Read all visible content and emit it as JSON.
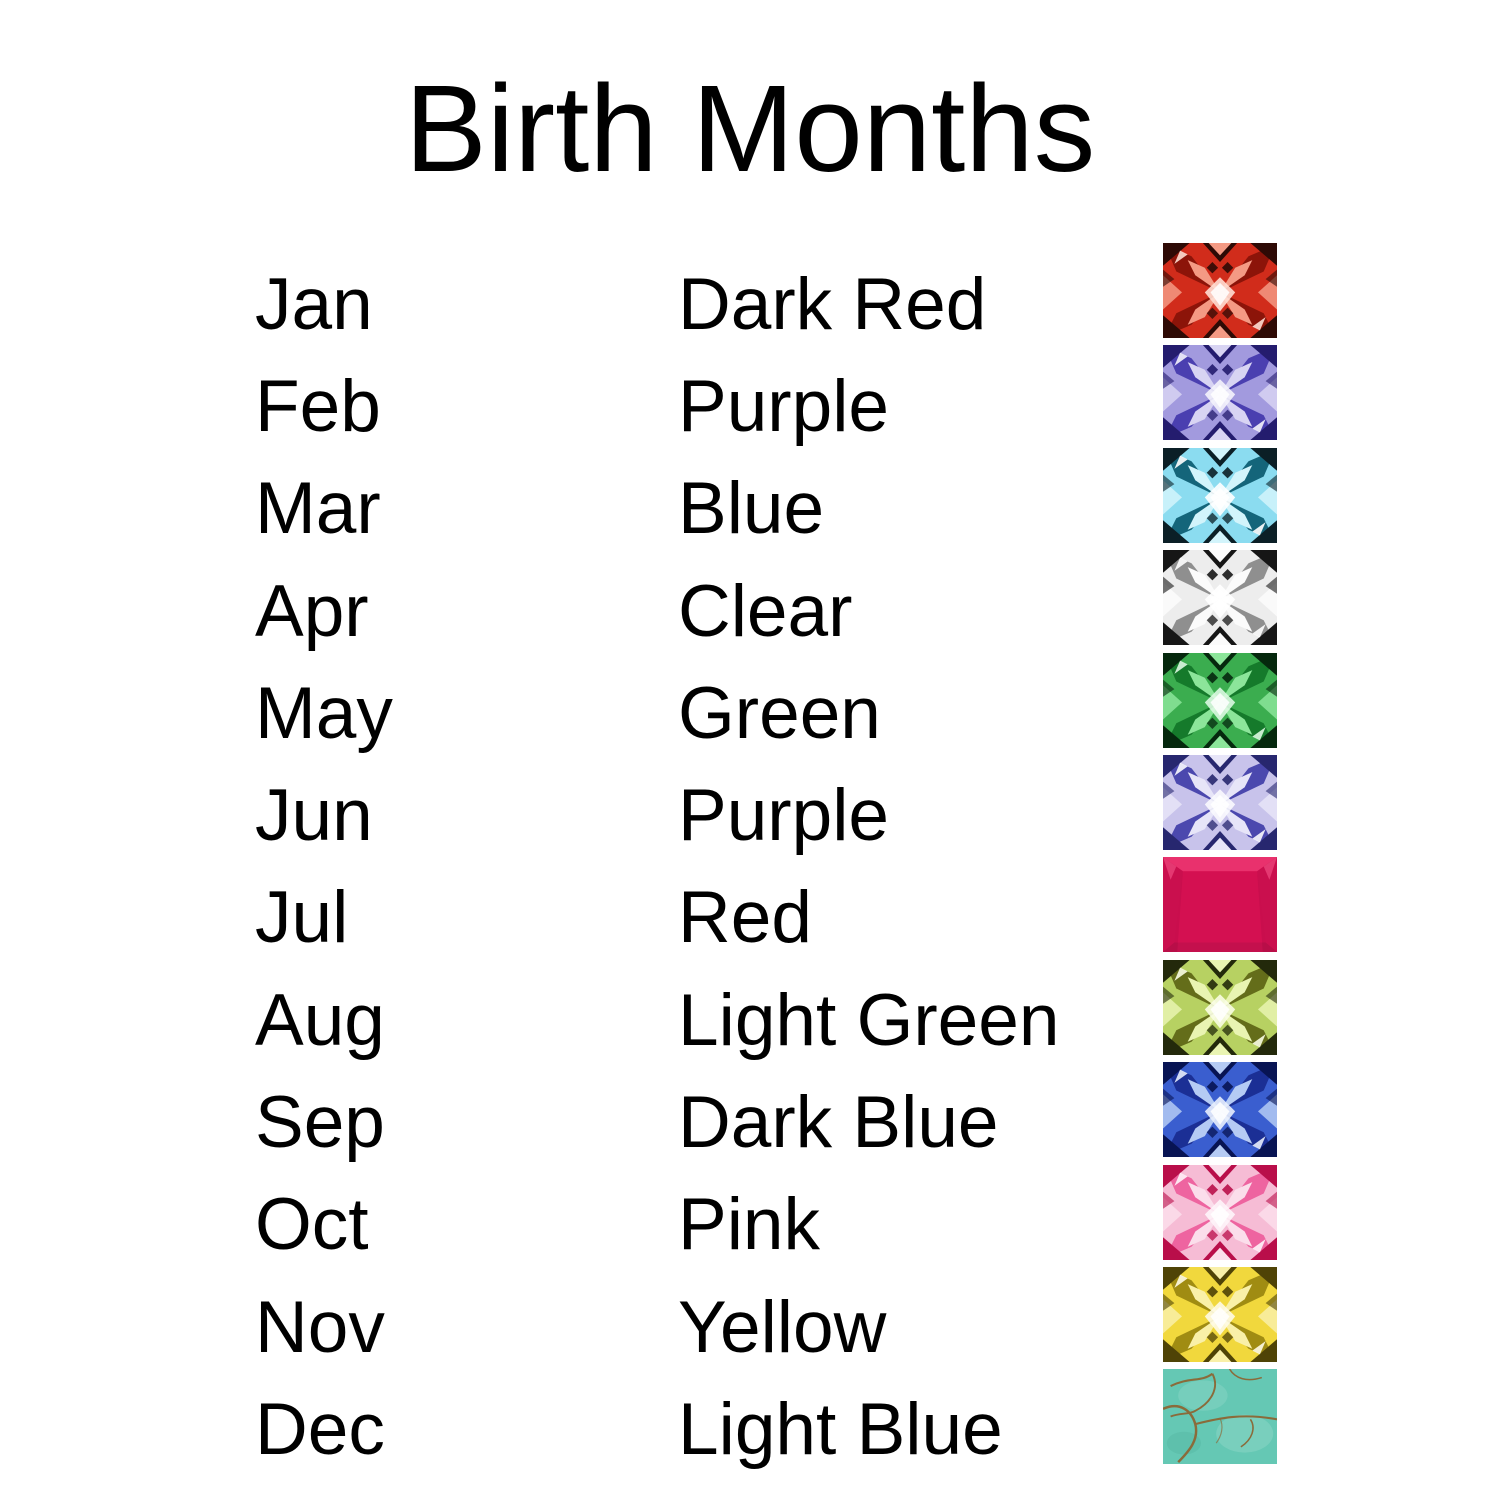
{
  "title": "Birth Months",
  "rows": [
    {
      "month": "Jan",
      "color_name": "Dark Red",
      "icon": "dark-red-gem-icon",
      "style": "faceted",
      "colors": {
        "b": "#d12c1b",
        "d": "#2e0a05",
        "m": "#8c1409",
        "l": "#f49a84",
        "x": "#ffded3"
      }
    },
    {
      "month": "Feb",
      "color_name": "Purple",
      "icon": "purple-gem-icon",
      "style": "faceted",
      "colors": {
        "b": "#a29ade",
        "d": "#241c6e",
        "m": "#4a3fb0",
        "l": "#d8d4f3",
        "x": "#f4f3fc"
      }
    },
    {
      "month": "Mar",
      "color_name": "Blue",
      "icon": "blue-gem-icon",
      "style": "faceted",
      "colors": {
        "b": "#8bdcf0",
        "d": "#0b1f26",
        "m": "#14657a",
        "l": "#d2f4fb",
        "x": "#ffffff"
      }
    },
    {
      "month": "Apr",
      "color_name": "Clear",
      "icon": "clear-gem-icon",
      "style": "faceted",
      "colors": {
        "b": "#ededed",
        "d": "#161616",
        "m": "#8f8f8f",
        "l": "#fbfbfb",
        "x": "#ffffff"
      }
    },
    {
      "month": "May",
      "color_name": "Green",
      "icon": "green-gem-icon",
      "style": "faceted",
      "colors": {
        "b": "#3bad4f",
        "d": "#05280d",
        "m": "#157a2b",
        "l": "#8ce59a",
        "x": "#dcf8e1"
      }
    },
    {
      "month": "Jun",
      "color_name": "Purple",
      "icon": "light-purple-gem-icon",
      "style": "faceted",
      "colors": {
        "b": "#c8c3eb",
        "d": "#27276f",
        "m": "#4b48ae",
        "l": "#e7e5f8",
        "x": "#fafafe"
      }
    },
    {
      "month": "Jul",
      "color_name": "Red",
      "icon": "red-gem-icon",
      "style": "flat",
      "colors": {
        "b": "#e31258",
        "d": "#a60d41",
        "m": "#c90f4d",
        "l": "#ef4a80",
        "x": "#f27ba3"
      }
    },
    {
      "month": "Aug",
      "color_name": "Light Green",
      "icon": "light-green-gem-icon",
      "style": "faceted",
      "colors": {
        "b": "#b7d162",
        "d": "#23290b",
        "m": "#646d1a",
        "l": "#e9f4b2",
        "x": "#fafde4"
      }
    },
    {
      "month": "Sep",
      "color_name": "Dark Blue",
      "icon": "dark-blue-gem-icon",
      "style": "faceted",
      "colors": {
        "b": "#3a5ecf",
        "d": "#081453",
        "m": "#1b2f95",
        "l": "#b5cbf4",
        "x": "#e8eefc"
      }
    },
    {
      "month": "Oct",
      "color_name": "Pink",
      "icon": "pink-gem-icon",
      "style": "faceted",
      "colors": {
        "b": "#f6bcd5",
        "d": "#b90e4a",
        "m": "#ee64a0",
        "l": "#fbdeeb",
        "x": "#fef4f9"
      }
    },
    {
      "month": "Nov",
      "color_name": "Yellow",
      "icon": "yellow-gem-icon",
      "style": "faceted",
      "colors": {
        "b": "#f1d83d",
        "d": "#4f4306",
        "m": "#a08c12",
        "l": "#f9f0a8",
        "x": "#fefbe6"
      }
    },
    {
      "month": "Dec",
      "color_name": "Light Blue",
      "icon": "light-blue-gem-icon",
      "style": "veined",
      "colors": {
        "b": "#65c8b4",
        "d": "#8a6b3a",
        "m": "#58b7a4",
        "l": "#85d4c3",
        "x": "#a9e2d5"
      }
    }
  ],
  "chart_data": {
    "type": "table",
    "title": "Birth Months",
    "rows": [
      [
        "Jan",
        "Dark Red"
      ],
      [
        "Feb",
        "Purple"
      ],
      [
        "Mar",
        "Blue"
      ],
      [
        "Apr",
        "Clear"
      ],
      [
        "May",
        "Green"
      ],
      [
        "Jun",
        "Purple"
      ],
      [
        "Jul",
        "Red"
      ],
      [
        "Aug",
        "Light Green"
      ],
      [
        "Sep",
        "Dark Blue"
      ],
      [
        "Oct",
        "Pink"
      ],
      [
        "Nov",
        "Yellow"
      ],
      [
        "Dec",
        "Light Blue"
      ]
    ],
    "legend_position": "none",
    "grid": false
  }
}
